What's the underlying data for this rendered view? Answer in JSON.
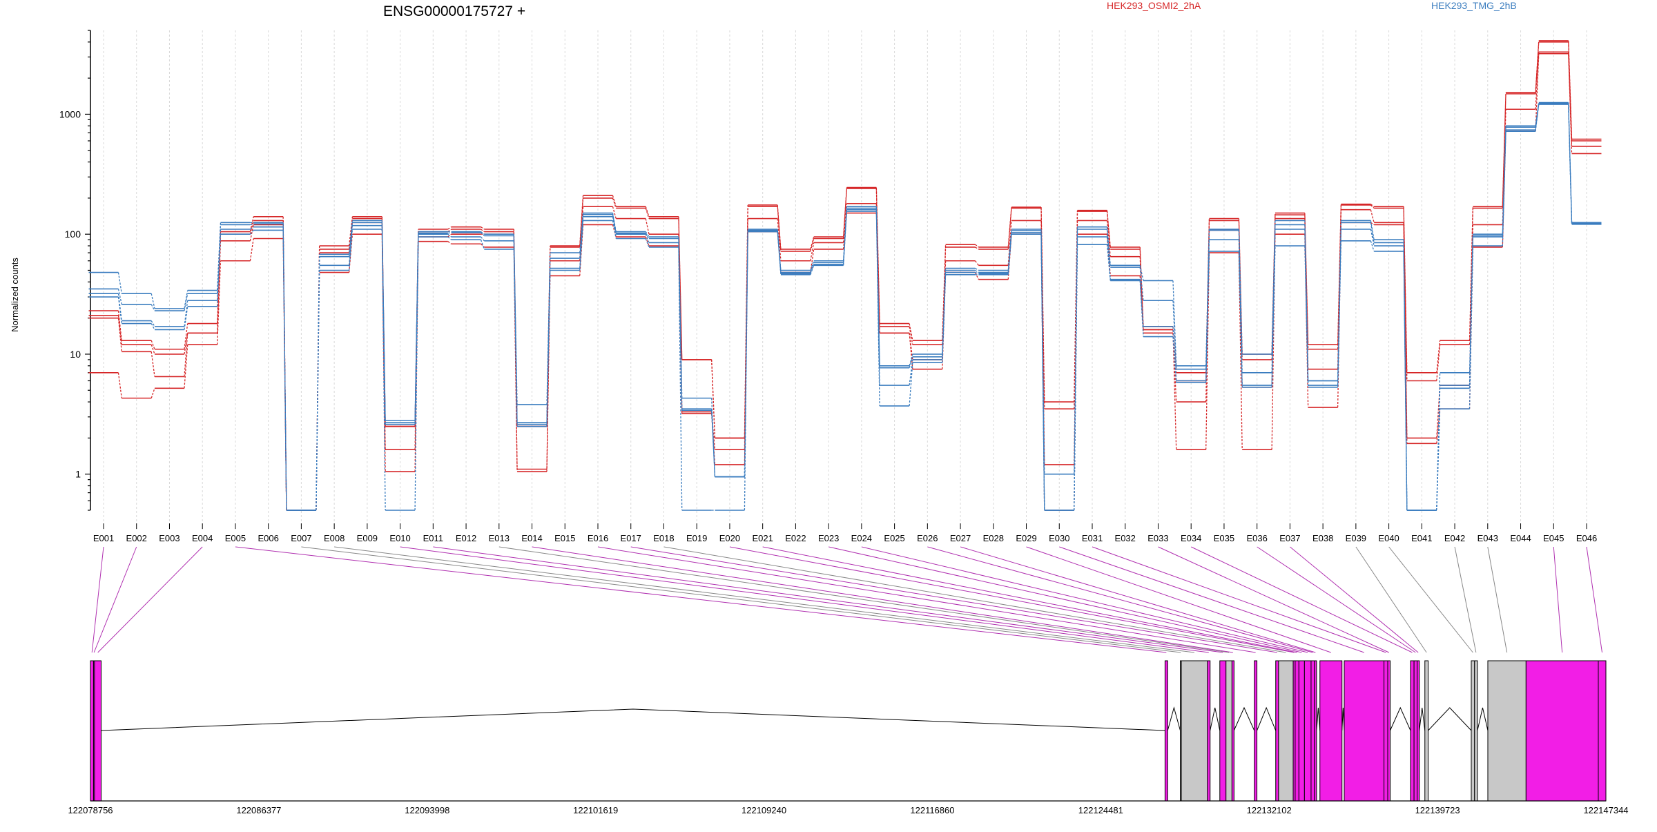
{
  "chart_data": {
    "type": "line",
    "title": "ENSG00000175727 +",
    "ylabel": "Normalized counts",
    "yscale": "log",
    "ylim": [
      0.5,
      5000
    ],
    "yticks": [
      {
        "value": 1,
        "label": "1"
      },
      {
        "value": 10,
        "label": "10"
      },
      {
        "value": 100,
        "label": "100"
      },
      {
        "value": 1000,
        "label": "1000"
      }
    ],
    "grid": "vertical dashed at each exon",
    "legend": [
      {
        "name": "HEK293_OSMI2_2hA",
        "color": "#d62728"
      },
      {
        "name": "HEK293_TMG_2hB",
        "color": "#3b7dbf"
      }
    ],
    "categories": [
      "E001",
      "E002",
      "E003",
      "E004",
      "E005",
      "E006",
      "E007",
      "E008",
      "E009",
      "E010",
      "E011",
      "E012",
      "E013",
      "E014",
      "E015",
      "E016",
      "E017",
      "E018",
      "E019",
      "E020",
      "E021",
      "E022",
      "E023",
      "E024",
      "E025",
      "E026",
      "E027",
      "E028",
      "E029",
      "E030",
      "E031",
      "E032",
      "E033",
      "E034",
      "E035",
      "E036",
      "E037",
      "E038",
      "E039",
      "E040",
      "E041",
      "E042",
      "E043",
      "E044",
      "E045",
      "E046"
    ],
    "series": [
      {
        "group": "HEK293_OSMI2_2hA",
        "color": "#d62728",
        "values": [
          23,
          13,
          11,
          18,
          105,
          140,
          0.5,
          80,
          140,
          2.5,
          110,
          115,
          110,
          2.5,
          80,
          210,
          170,
          140,
          9,
          2,
          175,
          75,
          95,
          245,
          18,
          13,
          82,
          78,
          168,
          4,
          158,
          78,
          17,
          7,
          135,
          10,
          150,
          12,
          178,
          170,
          7,
          13,
          170,
          1520,
          4100,
          620
        ]
      },
      {
        "group": "HEK293_OSMI2_2hA",
        "color": "#d62728",
        "values": [
          21,
          12,
          10,
          15,
          100,
          130,
          0.5,
          75,
          135,
          2.5,
          105,
          110,
          105,
          2.5,
          78,
          200,
          165,
          135,
          9,
          2,
          170,
          72,
          92,
          240,
          17,
          12,
          78,
          75,
          165,
          3.5,
          155,
          75,
          16,
          6,
          130,
          9,
          145,
          11,
          175,
          165,
          6,
          12,
          165,
          1480,
          4000,
          600
        ]
      },
      {
        "group": "HEK293_OSMI2_2hA",
        "color": "#d62728",
        "values": [
          20,
          10.5,
          6.5,
          15,
          88,
          120,
          0.5,
          70,
          125,
          1.6,
          95,
          100,
          100,
          1.1,
          60,
          170,
          135,
          100,
          3.3,
          1.6,
          135,
          60,
          85,
          180,
          15,
          9,
          60,
          55,
          130,
          1.2,
          130,
          65,
          15,
          4,
          108,
          5.3,
          135,
          7.5,
          160,
          125,
          2,
          5.5,
          120,
          1100,
          3300,
          540
        ]
      },
      {
        "group": "HEK293_OSMI2_2hA",
        "color": "#d62728",
        "values": [
          7,
          4.3,
          5.2,
          12,
          60,
          92,
          0.5,
          48,
          100,
          1.05,
          87,
          83,
          78,
          1.05,
          45,
          120,
          95,
          80,
          3.2,
          1.2,
          105,
          48,
          75,
          150,
          15,
          7.5,
          48,
          42,
          100,
          0.5,
          100,
          45,
          16,
          1.6,
          70,
          1.6,
          100,
          3.6,
          125,
          120,
          1.8,
          3.5,
          78,
          720,
          3200,
          470
        ]
      },
      {
        "group": "HEK293_TMG_2hB",
        "color": "#3b7dbf",
        "values": [
          48,
          32,
          24,
          34,
          125,
          125,
          0.5,
          68,
          130,
          2.8,
          105,
          105,
          100,
          3.8,
          70,
          150,
          105,
          95,
          4.3,
          0.95,
          110,
          50,
          60,
          170,
          8,
          10,
          52,
          50,
          110,
          1.0,
          115,
          55,
          41,
          8,
          110,
          10,
          130,
          6,
          130,
          90,
          0.5,
          7,
          100,
          800,
          1250,
          125
        ]
      },
      {
        "group": "HEK293_TMG_2hB",
        "color": "#3b7dbf",
        "values": [
          35,
          26,
          23,
          32,
          120,
          122,
          0.5,
          65,
          125,
          2.7,
          102,
          103,
          97,
          2.7,
          63,
          146,
          102,
          92,
          3.5,
          0.95,
          108,
          48,
          58,
          165,
          7.7,
          9.5,
          50,
          48,
          107,
          0.5,
          110,
          53,
          28,
          7.5,
          108,
          7,
          120,
          6,
          125,
          85,
          0.5,
          5.5,
          97,
          780,
          1230,
          123
        ]
      },
      {
        "group": "HEK293_TMG_2hB",
        "color": "#3b7dbf",
        "values": [
          32,
          19,
          17,
          28,
          110,
          115,
          0.5,
          55,
          118,
          2.6,
          100,
          95,
          88,
          2.6,
          52,
          140,
          100,
          85,
          3.4,
          0.95,
          105,
          47,
          56,
          160,
          5.5,
          9,
          48,
          47,
          103,
          0.5,
          95,
          42,
          17,
          6,
          90,
          5.5,
          110,
          5.5,
          110,
          80,
          0.5,
          5.2,
          95,
          740,
          1220,
          122
        ]
      },
      {
        "group": "HEK293_TMG_2hB",
        "color": "#3b7dbf",
        "values": [
          30,
          18,
          16,
          25,
          100,
          108,
          0.5,
          50,
          110,
          0.5,
          95,
          90,
          75,
          2.5,
          50,
          130,
          92,
          78,
          0.5,
          0.5,
          107,
          46,
          55,
          155,
          3.7,
          8.5,
          46,
          46,
          100,
          0.5,
          82,
          41,
          14,
          5.8,
          72,
          5.3,
          80,
          5.3,
          88,
          72,
          0.5,
          3.5,
          80,
          720,
          1210,
          121
        ]
      }
    ],
    "exon_labels": [
      "E001",
      "E002",
      "E003",
      "E004",
      "E005",
      "E006",
      "E007",
      "E008",
      "E009",
      "E010",
      "E011",
      "E012",
      "E013",
      "E014",
      "E015",
      "E016",
      "E017",
      "E018",
      "E019",
      "E020",
      "E021",
      "E022",
      "E023",
      "E024",
      "E025",
      "E026",
      "E027",
      "E028",
      "E029",
      "E030",
      "E031",
      "E032",
      "E033",
      "E034",
      "E035",
      "E036",
      "E037",
      "E038",
      "E039",
      "E040",
      "E041",
      "E042",
      "E043",
      "E044",
      "E045",
      "E046"
    ],
    "genomic_axis": {
      "labels": [
        "122078756",
        "122086377",
        "122093998",
        "122101619",
        "122109240",
        "122116860",
        "122124481",
        "122132102",
        "122139723",
        "122147344"
      ],
      "start": 122078756,
      "end": 122147344
    },
    "gene_model": {
      "exons": [
        {
          "start": 122078756,
          "end": 122078895,
          "color": "#f21ee6"
        },
        {
          "start": 122078895,
          "end": 122078940,
          "color": "#f21ee6"
        },
        {
          "start": 122078940,
          "end": 122079240,
          "color": "#f21ee6"
        },
        {
          "start": 122127390,
          "end": 122127510,
          "color": "#f21ee6"
        },
        {
          "start": 122128080,
          "end": 122128130,
          "color": "#c8c8c8"
        },
        {
          "start": 122128130,
          "end": 122129310,
          "color": "#c8c8c8"
        },
        {
          "start": 122129310,
          "end": 122129430,
          "color": "#f21ee6"
        },
        {
          "start": 122129870,
          "end": 122130150,
          "color": "#f21ee6"
        },
        {
          "start": 122130150,
          "end": 122130420,
          "color": "#c8c8c8"
        },
        {
          "start": 122130420,
          "end": 122130510,
          "color": "#f21ee6"
        },
        {
          "start": 122131430,
          "end": 122131550,
          "color": "#f21ee6"
        },
        {
          "start": 122132400,
          "end": 122132530,
          "color": "#f21ee6"
        },
        {
          "start": 122132530,
          "end": 122133190,
          "color": "#c8c8c8"
        },
        {
          "start": 122133190,
          "end": 122133280,
          "color": "#f21ee6"
        },
        {
          "start": 122133280,
          "end": 122133450,
          "color": "#f21ee6"
        },
        {
          "start": 122133450,
          "end": 122133700,
          "color": "#f21ee6"
        },
        {
          "start": 122133700,
          "end": 122134000,
          "color": "#f21ee6"
        },
        {
          "start": 122134000,
          "end": 122134150,
          "color": "#f21ee6"
        },
        {
          "start": 122134150,
          "end": 122134250,
          "color": "#f21ee6"
        },
        {
          "start": 122134400,
          "end": 122135400,
          "color": "#f21ee6"
        },
        {
          "start": 122135500,
          "end": 122137300,
          "color": "#f21ee6"
        },
        {
          "start": 122137300,
          "end": 122137470,
          "color": "#f21ee6"
        },
        {
          "start": 122137470,
          "end": 122137580,
          "color": "#f21ee6"
        },
        {
          "start": 122138500,
          "end": 122138660,
          "color": "#f21ee6"
        },
        {
          "start": 122138660,
          "end": 122138800,
          "color": "#f21ee6"
        },
        {
          "start": 122138800,
          "end": 122138900,
          "color": "#f21ee6"
        },
        {
          "start": 122139150,
          "end": 122139300,
          "color": "#c8c8c8"
        },
        {
          "start": 122141250,
          "end": 122141400,
          "color": "#c8c8c8"
        },
        {
          "start": 122141400,
          "end": 122141530,
          "color": "#c8c8c8"
        },
        {
          "start": 122142000,
          "end": 122143730,
          "color": "#c8c8c8"
        },
        {
          "start": 122143730,
          "end": 122147000,
          "color": "#f21ee6"
        },
        {
          "start": 122147000,
          "end": 122147344,
          "color": "#f21ee6"
        }
      ]
    }
  }
}
